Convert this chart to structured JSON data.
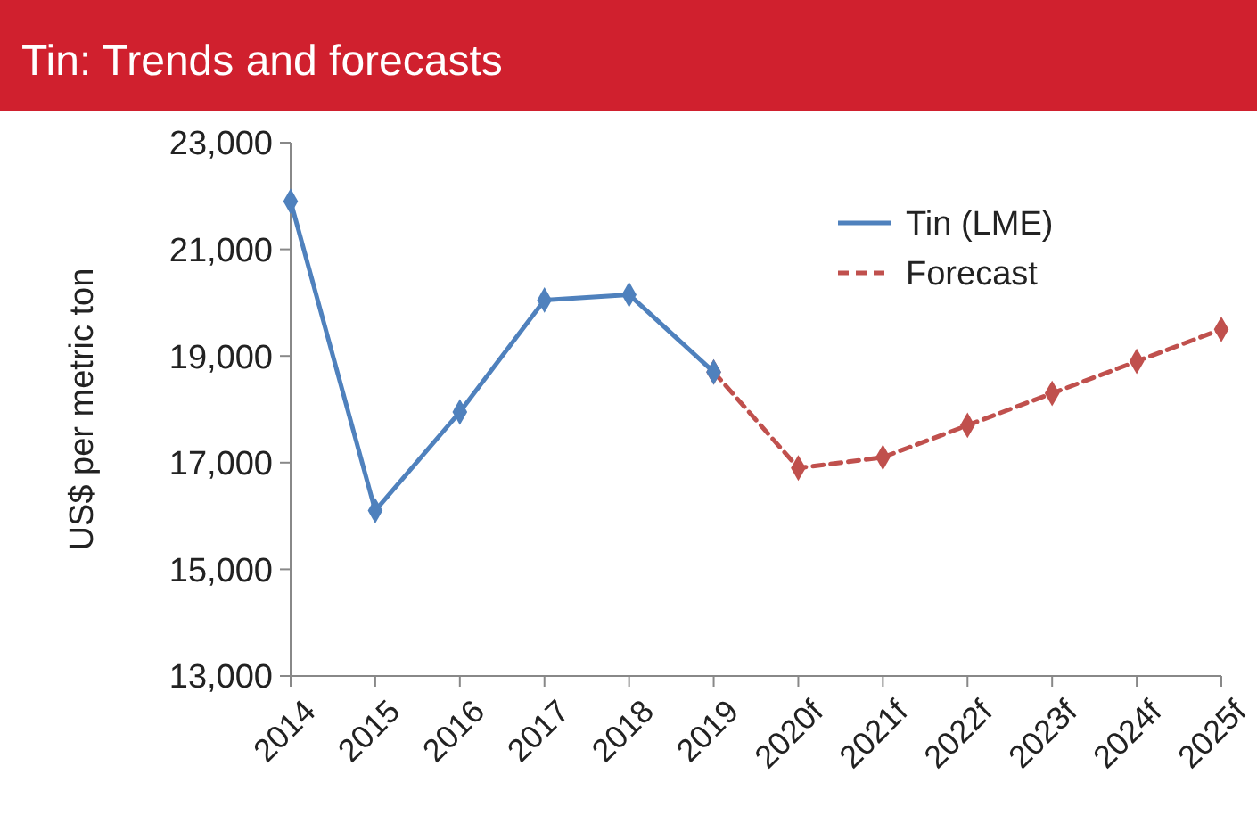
{
  "chart_data": {
    "type": "line",
    "title": "Tin: Trends and forecasts",
    "ylabel": "US$ per metric ton",
    "categories": [
      "2014",
      "2015",
      "2016",
      "2017",
      "2018",
      "2019",
      "2020f",
      "2021f",
      "2022f",
      "2023f",
      "2024f",
      "2025f"
    ],
    "series": [
      {
        "name": "Tin (LME)",
        "color": "#4f81bd",
        "line_style": "solid",
        "values": [
          21900,
          16100,
          17950,
          20050,
          20150,
          18700,
          null,
          null,
          null,
          null,
          null,
          null
        ]
      },
      {
        "name": "Forecast",
        "color": "#c0504d",
        "line_style": "dashed",
        "values": [
          null,
          null,
          null,
          null,
          null,
          18700,
          16900,
          17100,
          17700,
          18300,
          18900,
          19500
        ]
      }
    ],
    "ylim": [
      13000,
      23000
    ],
    "yticks": [
      {
        "value": 13000,
        "label": "13,000"
      },
      {
        "value": 15000,
        "label": "15,000"
      },
      {
        "value": 17000,
        "label": "17,000"
      },
      {
        "value": 19000,
        "label": "19,000"
      },
      {
        "value": 21000,
        "label": "21,000"
      },
      {
        "value": 23000,
        "label": "23,000"
      }
    ],
    "grid": false,
    "legend": "top right",
    "marker": "diamond"
  }
}
